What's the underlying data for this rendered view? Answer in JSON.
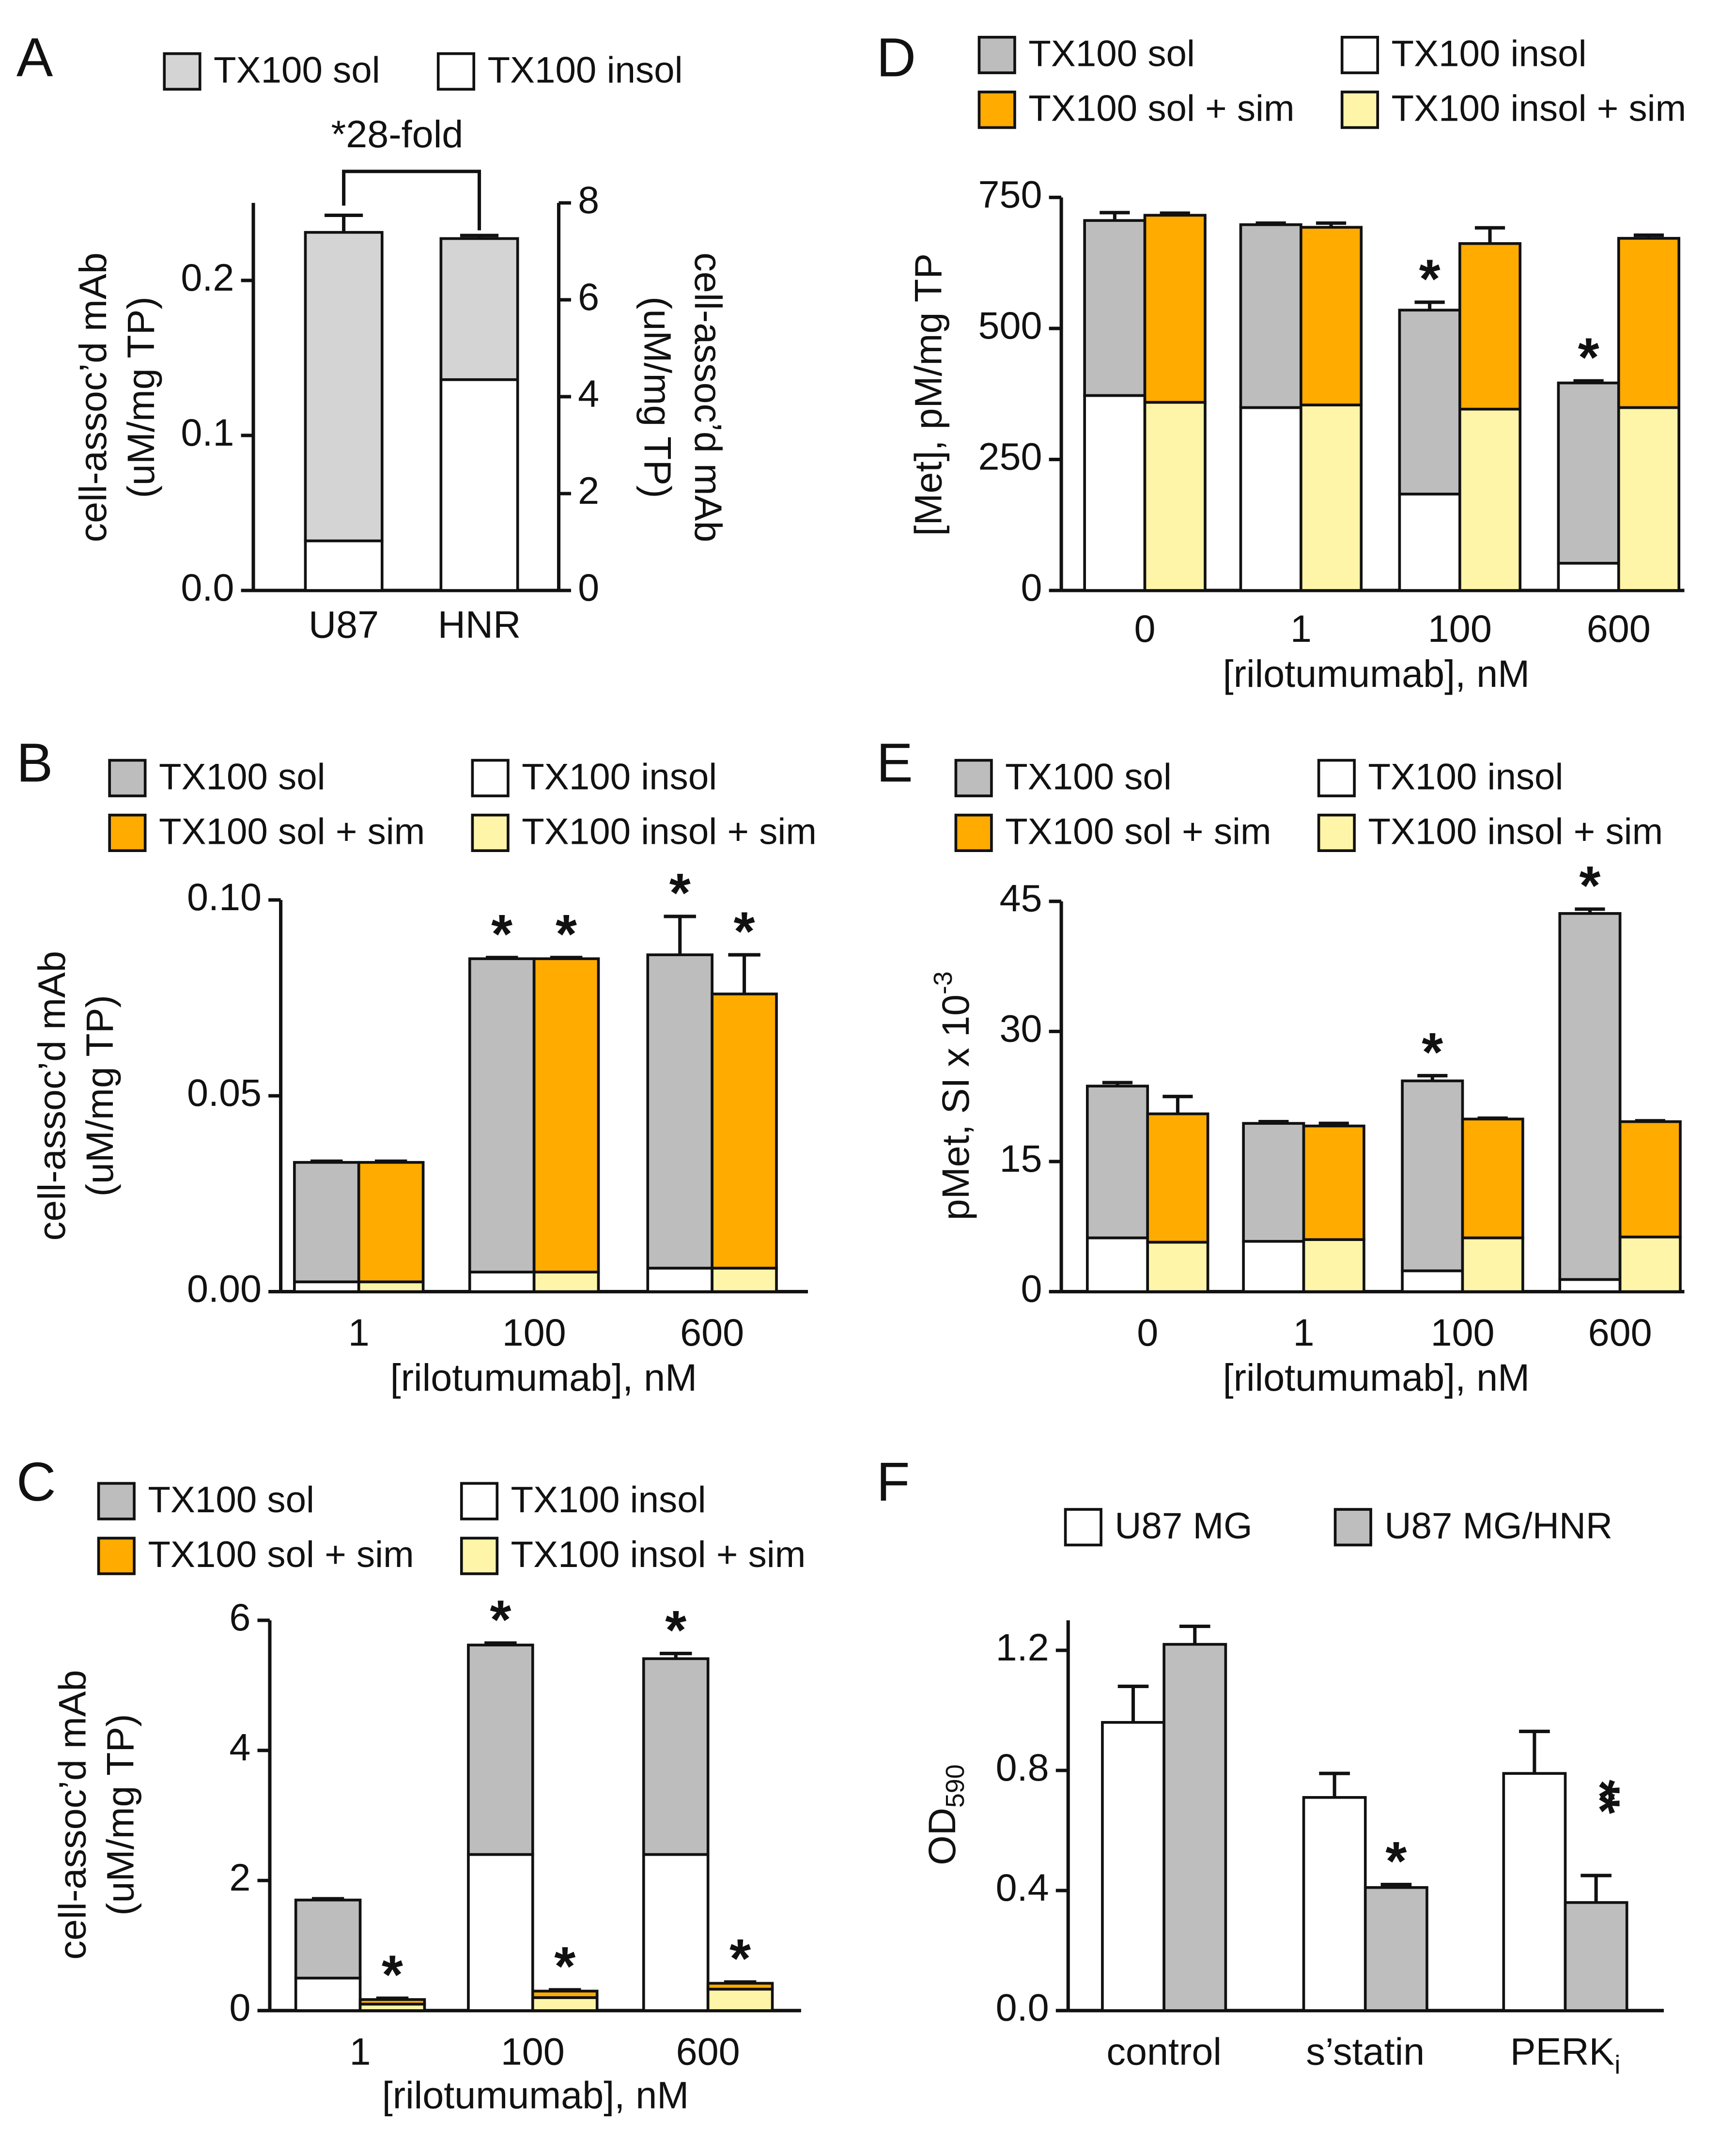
{
  "chart_data": [
    {
      "type": "stacked_bar",
      "panel": "A",
      "categories": [
        "U87",
        "HNR"
      ],
      "y_label": [
        "cell-assoc’d mAb",
        "(uM/mg TP)"
      ],
      "y2_label": [
        "cell-assoc’d mAb",
        "(uM/mg TP)"
      ],
      "annotation": "*28-fold",
      "ylim": [
        0,
        0.25
      ],
      "yticks": [
        {
          "value": 0,
          "label": "0.0"
        },
        0.1,
        0.2
      ],
      "y2lim": [
        0,
        8
      ],
      "y2ticks": [
        0,
        2,
        4,
        6,
        8
      ],
      "series": [
        {
          "name": "TX100 insol",
          "color": "#ffffff",
          "stack": 0,
          "values": [
            0.032,
            0.136
          ],
          "errors": [
            0.012,
            0.007
          ],
          "significance": [
            null,
            "*"
          ]
        },
        {
          "name": "TX100 sol",
          "color": "#d4d4d4",
          "stack": 0,
          "values": [
            0.199,
            0.091
          ],
          "errors": [
            0.011,
            0.002
          ]
        }
      ]
    },
    {
      "type": "stacked_bar",
      "panel": "B",
      "categories": [
        "1",
        "100",
        "600"
      ],
      "y_label": [
        "cell-assoc’d mAb",
        "(uM/mg TP)"
      ],
      "x_label": "[rilotumumab], nM",
      "ylim": [
        0,
        0.1
      ],
      "yticks": [
        {
          "value": 0,
          "label": "0.00"
        },
        0.05,
        {
          "value": 0.1,
          "label": "0.10"
        }
      ],
      "series": [
        {
          "name": "TX100 insol",
          "color": "#ffffff",
          "stack": 0,
          "values": [
            0.0025,
            0.005,
            0.006
          ],
          "errors": [
            0.0003,
            0.0003,
            0.0003
          ]
        },
        {
          "name": "TX100 sol",
          "color": "#bdbdbd",
          "stack": 0,
          "values": [
            0.0305,
            0.08,
            0.08
          ],
          "errors": [
            0.0003,
            0.0003,
            0.0098
          ],
          "significance": [
            null,
            "*",
            "*"
          ]
        },
        {
          "name": "TX100 insol + sim",
          "color": "#fff5a8",
          "stack": 1,
          "values": [
            0.0025,
            0.005,
            0.006
          ],
          "errors": [
            0.0003,
            0.0003,
            0.0003
          ]
        },
        {
          "name": "TX100 sol + sim",
          "color": "#ffab00",
          "stack": 1,
          "values": [
            0.0305,
            0.08,
            0.07
          ],
          "errors": [
            0.0003,
            0.0003,
            0.01
          ],
          "significance": [
            null,
            "*",
            "*"
          ]
        }
      ]
    },
    {
      "type": "stacked_bar",
      "panel": "C",
      "categories": [
        "1",
        "100",
        "600"
      ],
      "y_label": [
        "cell-assoc’d mAb",
        "(uM/mg TP)"
      ],
      "x_label": "[rilotumumab], nM",
      "ylim": [
        0,
        6
      ],
      "yticks": [
        0,
        2,
        4,
        6
      ],
      "series": [
        {
          "name": "TX100 insol",
          "color": "#ffffff",
          "stack": 0,
          "values": [
            0.5,
            2.4,
            2.4
          ],
          "errors": [
            0.02,
            0.05,
            0.03
          ],
          "significance": [
            null,
            "*",
            "*"
          ]
        },
        {
          "name": "TX100 sol",
          "color": "#bdbdbd",
          "stack": 0,
          "values": [
            1.2,
            3.22,
            3.01
          ],
          "errors": [
            0.02,
            0.03,
            0.08
          ],
          "significance": [
            null,
            "*",
            "*"
          ]
        },
        {
          "name": "TX100 insol + sim",
          "color": "#fff5a8",
          "stack": 1,
          "values": [
            0.1,
            0.2,
            0.33
          ],
          "errors": [
            0.01,
            0.01,
            0.01
          ]
        },
        {
          "name": "TX100 sol + sim",
          "color": "#ffab00",
          "stack": 1,
          "values": [
            0.07,
            0.1,
            0.09
          ],
          "errors": [
            0.02,
            0.02,
            0.02
          ],
          "significance": [
            "*",
            "*",
            "*"
          ]
        }
      ]
    },
    {
      "type": "stacked_bar",
      "panel": "D",
      "categories": [
        "0",
        "1",
        "100",
        "600"
      ],
      "y_label": [
        "[Met], pM/mg TP"
      ],
      "x_label": "[rilotumumab], nM",
      "ylim": [
        0,
        750
      ],
      "yticks": [
        0,
        250,
        500,
        750
      ],
      "series": [
        {
          "name": "TX100 insol",
          "color": "#ffffff",
          "stack": 0,
          "values": [
            372,
            349,
            184,
            52
          ],
          "errors": [
            8,
            4,
            5,
            4
          ],
          "significance": [
            null,
            null,
            "*",
            "*"
          ]
        },
        {
          "name": "TX100 sol",
          "color": "#bdbdbd",
          "stack": 0,
          "values": [
            334,
            349,
            351,
            344
          ],
          "errors": [
            15,
            3,
            15,
            4
          ],
          "significance": [
            null,
            null,
            "*",
            "*"
          ]
        },
        {
          "name": "TX100 insol + sim",
          "color": "#fff5a8",
          "stack": 1,
          "values": [
            359,
            354,
            346,
            349
          ],
          "errors": [
            4,
            6,
            5,
            5
          ]
        },
        {
          "name": "TX100 sol + sim",
          "color": "#ffab00",
          "stack": 1,
          "values": [
            357,
            339,
            316,
            323
          ],
          "errors": [
            4,
            8,
            30,
            6
          ]
        }
      ]
    },
    {
      "type": "stacked_bar",
      "panel": "E",
      "categories": [
        "0",
        "1",
        "100",
        "600"
      ],
      "y_label": [
        "pMet, SI x 10"
      ],
      "y_label_sup": "-3",
      "x_label": "[rilotumumab], nM",
      "ylim": [
        0,
        45
      ],
      "yticks": [
        0,
        15,
        30,
        45
      ],
      "series": [
        {
          "name": "TX100 insol",
          "color": "#ffffff",
          "stack": 0,
          "values": [
            6.2,
            5.8,
            2.4,
            1.4
          ],
          "errors": [
            0.2,
            0.2,
            0.3,
            0.3
          ],
          "significance": [
            null,
            null,
            "*",
            "*"
          ]
        },
        {
          "name": "TX100 sol",
          "color": "#bdbdbd",
          "stack": 0,
          "values": [
            17.5,
            13.6,
            21.9,
            42.2
          ],
          "errors": [
            0.4,
            0.2,
            0.6,
            0.5
          ],
          "significance": [
            null,
            null,
            "*",
            "*"
          ]
        },
        {
          "name": "TX100 insol + sim",
          "color": "#fff5a8",
          "stack": 1,
          "values": [
            5.7,
            6.0,
            6.2,
            6.3
          ],
          "errors": [
            0.2,
            0.2,
            0.2,
            0.3
          ]
        },
        {
          "name": "TX100 sol + sim",
          "color": "#ffab00",
          "stack": 1,
          "values": [
            14.8,
            13.1,
            13.7,
            13.3
          ],
          "errors": [
            2.0,
            0.3,
            0.1,
            0.1
          ]
        }
      ]
    },
    {
      "type": "bar",
      "panel": "F",
      "categories": [
        "control",
        "s’statin",
        "PERK"
      ],
      "category_subscripts": [
        null,
        null,
        "i"
      ],
      "y_label": [
        "OD"
      ],
      "y_label_sub": "590",
      "ylim": [
        0,
        1.3
      ],
      "yticks": [
        {
          "value": 0,
          "label": "0.0"
        },
        0.4,
        0.8,
        1.2
      ],
      "series": [
        {
          "name": "U87 MG",
          "color": "#ffffff",
          "values": [
            0.96,
            0.71,
            0.79
          ],
          "errors": [
            0.12,
            0.08,
            0.14
          ]
        },
        {
          "name": "U87 MG/HNR",
          "color": "#bebebe",
          "values": [
            1.22,
            0.41,
            0.36
          ],
          "errors": [
            0.06,
            0.01,
            0.09
          ],
          "significance": [
            null,
            "*",
            "**"
          ]
        }
      ]
    }
  ]
}
